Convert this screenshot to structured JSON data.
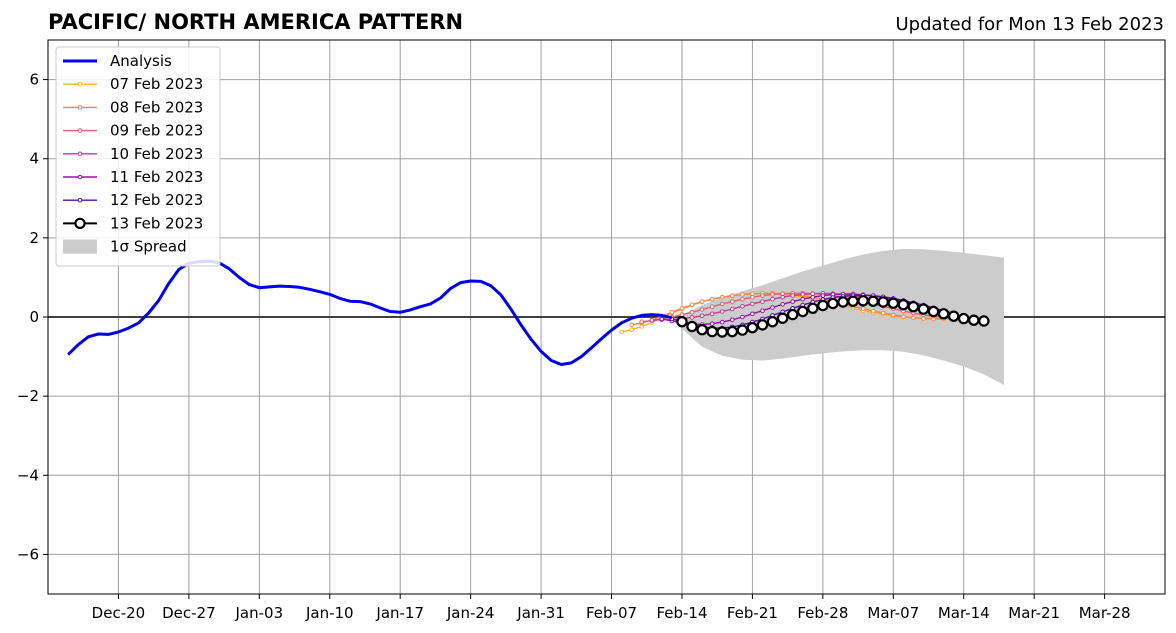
{
  "chart_data": {
    "type": "line",
    "title": "PACIFIC/ NORTH AMERICA PATTERN",
    "subtitle": "Updated for Mon 13 Feb 2023",
    "xlabel": "",
    "ylabel": "",
    "x_range": [
      "2022-12-13",
      "2023-04-03"
    ],
    "ylim": [
      -7,
      7
    ],
    "yticks": [
      -6,
      -4,
      -2,
      0,
      2,
      4,
      6
    ],
    "ytick_labels": [
      "−6",
      "−4",
      "−2",
      "0",
      "2",
      "4",
      "6"
    ],
    "xticks": [
      "2022-12-20",
      "2022-12-27",
      "2023-01-03",
      "2023-01-10",
      "2023-01-17",
      "2023-01-24",
      "2023-01-31",
      "2023-02-07",
      "2023-02-14",
      "2023-02-21",
      "2023-02-28",
      "2023-03-07",
      "2023-03-14",
      "2023-03-21",
      "2023-03-28"
    ],
    "xtick_labels": [
      "Dec-20",
      "Dec-27",
      "Jan-03",
      "Jan-10",
      "Jan-17",
      "Jan-24",
      "Jan-31",
      "Feb-07",
      "Feb-14",
      "Feb-21",
      "Feb-28",
      "Mar-07",
      "Mar-14",
      "Mar-21",
      "Mar-28"
    ],
    "grid": true,
    "legend_position": "top-left",
    "analysis": {
      "name": "Analysis",
      "color": "#0000ee",
      "points": [
        [
          "2022-12-15",
          -0.95
        ],
        [
          "2022-12-16",
          -0.7
        ],
        [
          "2022-12-17",
          -0.5
        ],
        [
          "2022-12-18",
          -0.43
        ],
        [
          "2022-12-19",
          -0.44
        ],
        [
          "2022-12-20",
          -0.38
        ],
        [
          "2022-12-21",
          -0.28
        ],
        [
          "2022-12-22",
          -0.15
        ],
        [
          "2022-12-23",
          0.1
        ],
        [
          "2022-12-24",
          0.42
        ],
        [
          "2022-12-25",
          0.85
        ],
        [
          "2022-12-26",
          1.2
        ],
        [
          "2022-12-27",
          1.36
        ],
        [
          "2022-12-28",
          1.4
        ],
        [
          "2022-12-29",
          1.41
        ],
        [
          "2022-12-30",
          1.37
        ],
        [
          "2022-12-31",
          1.22
        ],
        [
          "2023-01-01",
          1.0
        ],
        [
          "2023-01-02",
          0.82
        ],
        [
          "2023-01-03",
          0.74
        ],
        [
          "2023-01-04",
          0.76
        ],
        [
          "2023-01-05",
          0.78
        ],
        [
          "2023-01-06",
          0.77
        ],
        [
          "2023-01-07",
          0.75
        ],
        [
          "2023-01-08",
          0.7
        ],
        [
          "2023-01-09",
          0.64
        ],
        [
          "2023-01-10",
          0.57
        ],
        [
          "2023-01-11",
          0.47
        ],
        [
          "2023-01-12",
          0.4
        ],
        [
          "2023-01-13",
          0.39
        ],
        [
          "2023-01-14",
          0.33
        ],
        [
          "2023-01-15",
          0.23
        ],
        [
          "2023-01-16",
          0.14
        ],
        [
          "2023-01-17",
          0.12
        ],
        [
          "2023-01-18",
          0.18
        ],
        [
          "2023-01-19",
          0.26
        ],
        [
          "2023-01-20",
          0.33
        ],
        [
          "2023-01-21",
          0.48
        ],
        [
          "2023-01-22",
          0.72
        ],
        [
          "2023-01-23",
          0.87
        ],
        [
          "2023-01-24",
          0.91
        ],
        [
          "2023-01-25",
          0.9
        ],
        [
          "2023-01-26",
          0.79
        ],
        [
          "2023-01-27",
          0.56
        ],
        [
          "2023-01-28",
          0.2
        ],
        [
          "2023-01-29",
          -0.2
        ],
        [
          "2023-01-30",
          -0.56
        ],
        [
          "2023-01-31",
          -0.87
        ],
        [
          "2023-02-01",
          -1.1
        ],
        [
          "2023-02-02",
          -1.2
        ],
        [
          "2023-02-03",
          -1.16
        ],
        [
          "2023-02-04",
          -1.0
        ],
        [
          "2023-02-05",
          -0.78
        ],
        [
          "2023-02-06",
          -0.55
        ],
        [
          "2023-02-07",
          -0.33
        ],
        [
          "2023-02-08",
          -0.15
        ],
        [
          "2023-02-09",
          -0.03
        ],
        [
          "2023-02-10",
          0.04
        ],
        [
          "2023-02-11",
          0.06
        ],
        [
          "2023-02-12",
          0.04
        ],
        [
          "2023-02-13",
          -0.02
        ]
      ]
    },
    "forecasts": [
      {
        "name": "07 Feb 2023",
        "color": "#fbb22b",
        "start": "2023-02-08",
        "values": [
          -0.38,
          -0.32,
          -0.24,
          -0.14,
          -0.02,
          0.1,
          0.2,
          0.3,
          0.38,
          0.45,
          0.5,
          0.54,
          0.57,
          0.59,
          0.6,
          0.59,
          0.57,
          0.54,
          0.5,
          0.45,
          0.4,
          0.34,
          0.28,
          0.22,
          0.16,
          0.11,
          0.07,
          0.03,
          0.0,
          -0.02,
          -0.03,
          -0.03,
          -0.02,
          -0.01
        ]
      },
      {
        "name": "08 Feb 2023",
        "color": "#f7854d",
        "start": "2023-02-09",
        "values": [
          -0.2,
          -0.15,
          -0.08,
          0.02,
          0.12,
          0.22,
          0.31,
          0.39,
          0.45,
          0.5,
          0.54,
          0.57,
          0.59,
          0.6,
          0.6,
          0.59,
          0.57,
          0.54,
          0.5,
          0.45,
          0.39,
          0.33,
          0.27,
          0.21,
          0.15,
          0.1,
          0.05,
          0.01,
          -0.02,
          -0.04,
          -0.05,
          -0.05,
          -0.04
        ]
      },
      {
        "name": "09 Feb 2023",
        "color": "#e35f73",
        "start": "2023-02-10",
        "values": [
          -0.12,
          -0.09,
          -0.05,
          0.0,
          0.06,
          0.12,
          0.19,
          0.26,
          0.33,
          0.39,
          0.45,
          0.5,
          0.54,
          0.57,
          0.59,
          0.6,
          0.6,
          0.59,
          0.57,
          0.54,
          0.5,
          0.45,
          0.39,
          0.33,
          0.27,
          0.21,
          0.15,
          0.1,
          0.05,
          0.02,
          0.0,
          -0.01
        ]
      },
      {
        "name": "10 Feb 2023",
        "color": "#bf3c8e",
        "start": "2023-02-11",
        "values": [
          -0.08,
          -0.07,
          -0.06,
          -0.04,
          -0.01,
          0.03,
          0.08,
          0.14,
          0.2,
          0.27,
          0.33,
          0.39,
          0.45,
          0.5,
          0.54,
          0.57,
          0.59,
          0.6,
          0.59,
          0.57,
          0.54,
          0.5,
          0.45,
          0.39,
          0.33,
          0.27,
          0.21,
          0.15,
          0.1,
          0.06,
          0.03
        ]
      },
      {
        "name": "11 Feb 2023",
        "color": "#9512a3",
        "start": "2023-02-12",
        "values": [
          -0.05,
          -0.1,
          -0.15,
          -0.18,
          -0.19,
          -0.17,
          -0.13,
          -0.07,
          0.0,
          0.08,
          0.16,
          0.24,
          0.32,
          0.39,
          0.45,
          0.5,
          0.54,
          0.57,
          0.58,
          0.58,
          0.56,
          0.53,
          0.49,
          0.44,
          0.38,
          0.32,
          0.26,
          0.2,
          0.14,
          0.09
        ]
      },
      {
        "name": "12 Feb 2023",
        "color": "#5c0aa6",
        "start": "2023-02-13",
        "values": [
          -0.05,
          -0.12,
          -0.19,
          -0.25,
          -0.28,
          -0.28,
          -0.25,
          -0.2,
          -0.13,
          -0.05,
          0.04,
          0.13,
          0.22,
          0.3,
          0.38,
          0.44,
          0.49,
          0.52,
          0.54,
          0.55,
          0.54,
          0.51,
          0.47,
          0.42,
          0.36,
          0.3,
          0.23,
          0.16,
          0.09
        ]
      },
      {
        "name": "13 Feb 2023",
        "color": "#000000",
        "start": "2023-02-14",
        "values": [
          -0.12,
          -0.24,
          -0.32,
          -0.37,
          -0.38,
          -0.37,
          -0.33,
          -0.27,
          -0.2,
          -0.12,
          -0.03,
          0.06,
          0.14,
          0.22,
          0.29,
          0.34,
          0.38,
          0.4,
          0.41,
          0.4,
          0.38,
          0.35,
          0.31,
          0.26,
          0.2,
          0.14,
          0.08,
          0.02,
          -0.04,
          -0.08,
          -0.1
        ]
      }
    ],
    "spread": {
      "name": "1σ Spread",
      "color": "#cccccc",
      "x": [
        "2023-02-14",
        "2023-02-16",
        "2023-02-18",
        "2023-02-20",
        "2023-02-22",
        "2023-02-24",
        "2023-02-26",
        "2023-02-28",
        "2023-03-02",
        "2023-03-04",
        "2023-03-06",
        "2023-03-08",
        "2023-03-10",
        "2023-03-12",
        "2023-03-14",
        "2023-03-16",
        "2023-03-18"
      ],
      "upper": [
        0.05,
        0.3,
        0.5,
        0.65,
        0.8,
        0.98,
        1.15,
        1.3,
        1.45,
        1.58,
        1.67,
        1.72,
        1.71,
        1.67,
        1.62,
        1.56,
        1.5
      ],
      "lower": [
        -0.3,
        -0.75,
        -0.98,
        -1.08,
        -1.1,
        -1.05,
        -0.98,
        -0.92,
        -0.87,
        -0.84,
        -0.84,
        -0.88,
        -0.97,
        -1.1,
        -1.25,
        -1.45,
        -1.72
      ]
    }
  }
}
